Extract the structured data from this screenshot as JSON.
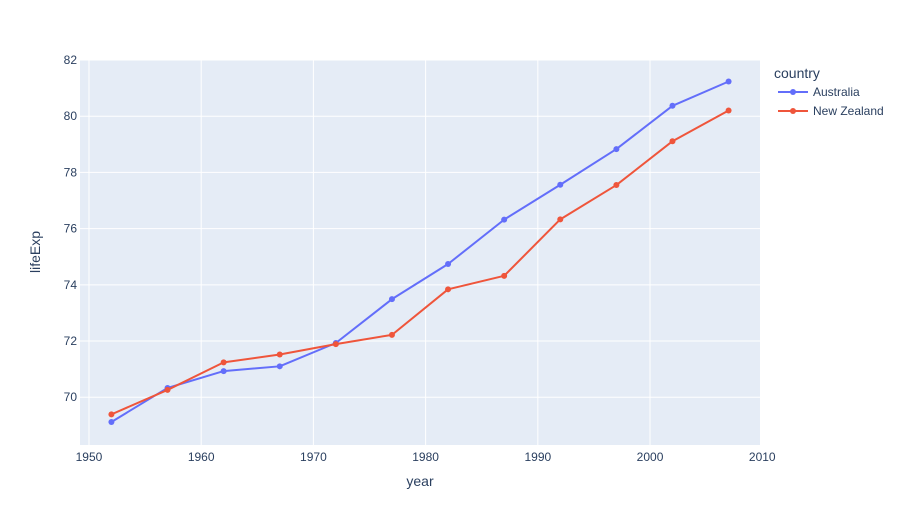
{
  "chart_data": {
    "type": "line",
    "title": "",
    "xlabel": "year",
    "ylabel": "lifeExp",
    "xlim": [
      1949.2,
      2009.8
    ],
    "ylim": [
      68.3,
      82.0
    ],
    "x_ticks": [
      1950,
      1960,
      1970,
      1980,
      1990,
      2000,
      2010
    ],
    "y_ticks": [
      70,
      72,
      74,
      76,
      78,
      80,
      82
    ],
    "grid": true,
    "legend_title": "country",
    "legend_position": "top-right outside",
    "x": [
      1952,
      1957,
      1962,
      1967,
      1972,
      1977,
      1982,
      1987,
      1992,
      1997,
      2002,
      2007
    ],
    "series": [
      {
        "name": "Australia",
        "color": "#636efa",
        "values": [
          69.12,
          70.33,
          70.93,
          71.1,
          71.93,
          73.49,
          74.74,
          76.32,
          77.56,
          78.83,
          80.37,
          81.235
        ]
      },
      {
        "name": "New Zealand",
        "color": "#ef553b",
        "values": [
          69.39,
          70.26,
          71.24,
          71.52,
          71.89,
          72.22,
          73.84,
          74.32,
          76.33,
          77.55,
          79.11,
          80.204
        ]
      }
    ]
  },
  "style": {
    "plot_background": "#e5ecf6",
    "grid_color": "#ffffff",
    "text_color": "#2a3f5f"
  }
}
